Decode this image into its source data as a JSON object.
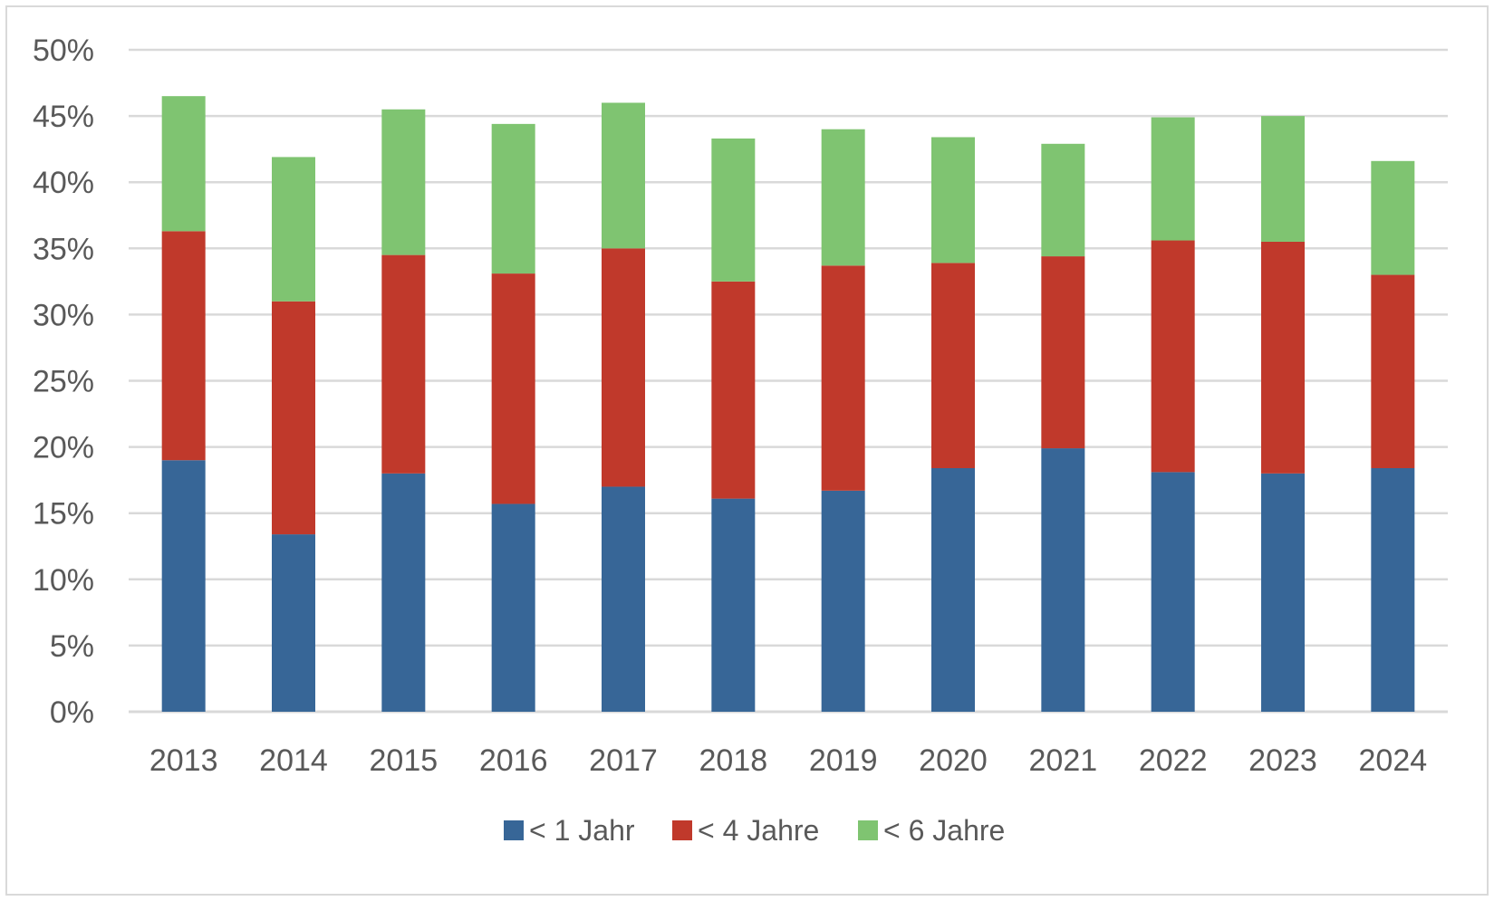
{
  "chart_data": {
    "type": "bar",
    "stacked": true,
    "title": "",
    "xlabel": "",
    "ylabel": "",
    "ylim": [
      0,
      50
    ],
    "y_ticks": [
      "0%",
      "5%",
      "10%",
      "15%",
      "20%",
      "25%",
      "30%",
      "35%",
      "40%",
      "45%",
      "50%"
    ],
    "categories": [
      "2013",
      "2014",
      "2015",
      "2016",
      "2017",
      "2018",
      "2019",
      "2020",
      "2021",
      "2022",
      "2023",
      "2024"
    ],
    "series": [
      {
        "name": "< 1 Jahr",
        "color": "#376697",
        "values": [
          19.0,
          13.4,
          18.0,
          15.7,
          17.0,
          16.1,
          16.7,
          18.4,
          19.9,
          18.1,
          18.0,
          18.4
        ]
      },
      {
        "name": "< 4 Jahre",
        "color": "#c0392b",
        "values": [
          17.3,
          17.6,
          16.5,
          17.4,
          18.0,
          16.4,
          17.0,
          15.5,
          14.5,
          17.5,
          17.5,
          14.6
        ]
      },
      {
        "name": "< 6 Jahre",
        "color": "#7fc471",
        "values": [
          10.2,
          10.9,
          11.0,
          11.3,
          11.0,
          10.8,
          10.3,
          9.5,
          8.5,
          9.3,
          9.5,
          8.6
        ]
      }
    ],
    "grid": true,
    "legend_position": "bottom"
  }
}
